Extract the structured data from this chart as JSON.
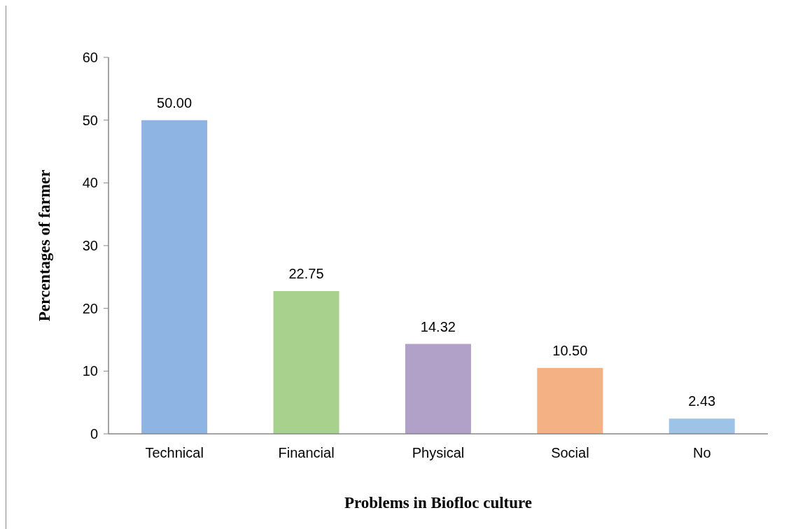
{
  "chart_data": {
    "type": "bar",
    "xlabel": "Problems in Biofloc culture",
    "ylabel": "Percentages of farmer",
    "categories": [
      "Technical",
      "Financial",
      "Physical",
      "Social",
      "No"
    ],
    "values": [
      50,
      22.75,
      14.32,
      10.5,
      2.43
    ],
    "colors": [
      "#8eb4e3",
      "#a9d18e",
      "#b1a0c7",
      "#f4b183",
      "#9dc3e6"
    ],
    "value_labels": [
      "50.00",
      "22.75",
      "14.32",
      "10.50",
      "2.43"
    ],
    "ylim": [
      0,
      60
    ],
    "yticks": [
      0,
      10,
      20,
      30,
      40,
      50,
      60
    ]
  }
}
